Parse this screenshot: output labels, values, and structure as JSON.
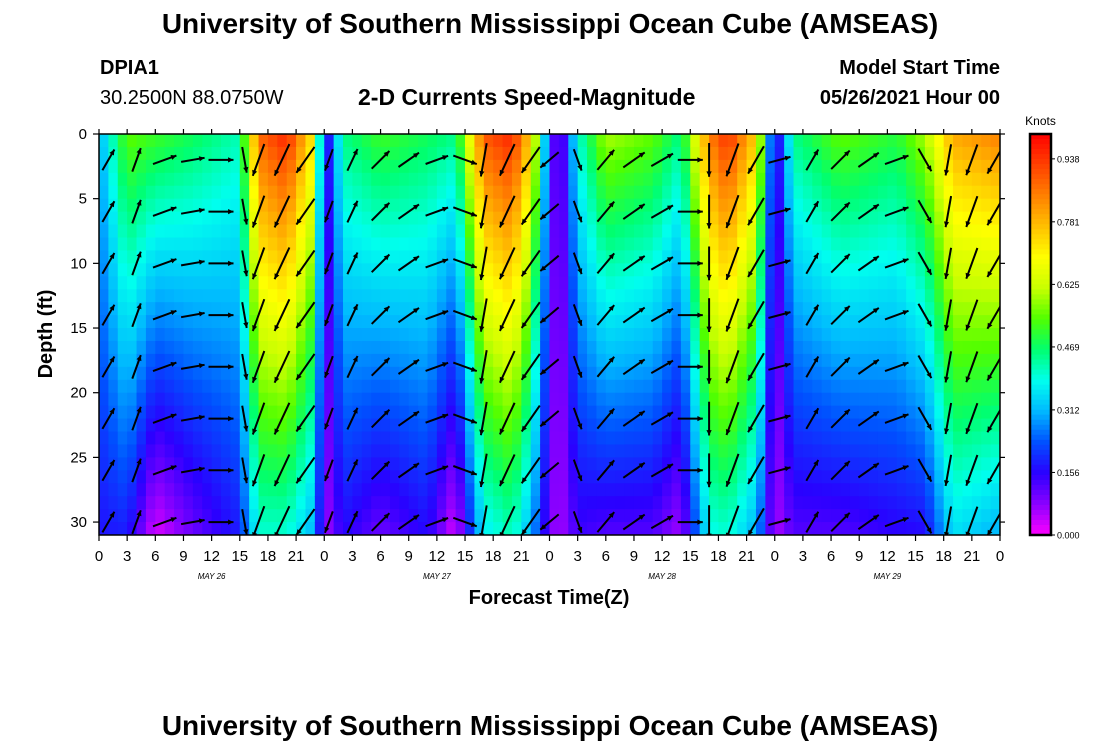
{
  "header": {
    "title": "University of Southern Mississippi Ocean Cube (AMSEAS)",
    "footer_title": "University of Southern Mississippi Ocean Cube (AMSEAS)",
    "station_id": "DPIA1",
    "station_coords": "30.2500N  88.0750W",
    "subtitle": "2-D Currents Speed-Magnitude",
    "model_start_label": "Model Start Time",
    "model_start_value": "05/26/2021 Hour 00"
  },
  "chart_data": {
    "type": "heatmap",
    "title": "2-D Currents Speed-Magnitude",
    "xlabel": "Forecast Time(Z)",
    "ylabel": "Depth (ft)",
    "x_range_hours": [
      0,
      96
    ],
    "ylim": [
      0,
      31
    ],
    "x_ticks": [
      {
        "hour": 0,
        "label": "0"
      },
      {
        "hour": 3,
        "label": "3"
      },
      {
        "hour": 6,
        "label": "6"
      },
      {
        "hour": 9,
        "label": "9"
      },
      {
        "hour": 12,
        "label": "12"
      },
      {
        "hour": 15,
        "label": "15"
      },
      {
        "hour": 18,
        "label": "18"
      },
      {
        "hour": 21,
        "label": "21"
      },
      {
        "hour": 24,
        "label": "0"
      },
      {
        "hour": 27,
        "label": "3"
      },
      {
        "hour": 30,
        "label": "6"
      },
      {
        "hour": 33,
        "label": "9"
      },
      {
        "hour": 36,
        "label": "12"
      },
      {
        "hour": 39,
        "label": "15"
      },
      {
        "hour": 42,
        "label": "18"
      },
      {
        "hour": 45,
        "label": "21"
      },
      {
        "hour": 48,
        "label": "0"
      },
      {
        "hour": 51,
        "label": "3"
      },
      {
        "hour": 54,
        "label": "6"
      },
      {
        "hour": 57,
        "label": "9"
      },
      {
        "hour": 60,
        "label": "12"
      },
      {
        "hour": 63,
        "label": "15"
      },
      {
        "hour": 66,
        "label": "18"
      },
      {
        "hour": 69,
        "label": "21"
      },
      {
        "hour": 72,
        "label": "0"
      },
      {
        "hour": 75,
        "label": "3"
      },
      {
        "hour": 78,
        "label": "6"
      },
      {
        "hour": 81,
        "label": "9"
      },
      {
        "hour": 84,
        "label": "12"
      },
      {
        "hour": 87,
        "label": "15"
      },
      {
        "hour": 90,
        "label": "18"
      },
      {
        "hour": 93,
        "label": "21"
      },
      {
        "hour": 96,
        "label": "0"
      }
    ],
    "date_labels": [
      {
        "hour": 12,
        "label": "MAY 26"
      },
      {
        "hour": 36,
        "label": "MAY 27"
      },
      {
        "hour": 60,
        "label": "MAY 28"
      },
      {
        "hour": 84,
        "label": "MAY 29"
      }
    ],
    "y_ticks": [
      0,
      5,
      10,
      15,
      20,
      25,
      30
    ],
    "colorbar": {
      "unit_label": "Knots",
      "min": 0.0,
      "max": 1.0,
      "ticks": [
        "0.000",
        "0.156",
        "0.312",
        "0.469",
        "0.625",
        "0.781",
        "0.938"
      ],
      "colors": [
        "#ff00ff",
        "#8a00ff",
        "#2a00ff",
        "#0050ff",
        "#00b8ff",
        "#00ffee",
        "#00ff70",
        "#50ff00",
        "#c8ff00",
        "#ffff00",
        "#ffc000",
        "#ff8000",
        "#ff4000",
        "#ff0000"
      ]
    },
    "speed_profiles": [
      {
        "hour": 0,
        "surface": 0.3,
        "deep": 0.17
      },
      {
        "hour": 3,
        "surface": 0.55,
        "deep": 0.18
      },
      {
        "hour": 6,
        "surface": 0.52,
        "deep": 0.02
      },
      {
        "hour": 10,
        "surface": 0.48,
        "deep": 0.1
      },
      {
        "hour": 15,
        "surface": 0.42,
        "deep": 0.18
      },
      {
        "hour": 17,
        "surface": 0.88,
        "deep": 0.4
      },
      {
        "hour": 20,
        "surface": 0.96,
        "deep": 0.4
      },
      {
        "hour": 23,
        "surface": 0.7,
        "deep": 0.3
      },
      {
        "hour": 24,
        "surface": 0.1,
        "deep": 0.05
      },
      {
        "hour": 26,
        "surface": 0.45,
        "deep": 0.16
      },
      {
        "hour": 30,
        "surface": 0.52,
        "deep": 0.1
      },
      {
        "hour": 35,
        "surface": 0.48,
        "deep": 0.16
      },
      {
        "hour": 38,
        "surface": 0.45,
        "deep": 0.02
      },
      {
        "hour": 41,
        "surface": 0.9,
        "deep": 0.36
      },
      {
        "hour": 44,
        "surface": 0.96,
        "deep": 0.42
      },
      {
        "hour": 46,
        "surface": 0.75,
        "deep": 0.3
      },
      {
        "hour": 48,
        "surface": 0.2,
        "deep": 0.1
      },
      {
        "hour": 49,
        "surface": 0.05,
        "deep": 0.05
      },
      {
        "hour": 51,
        "surface": 0.4,
        "deep": 0.14
      },
      {
        "hour": 54,
        "surface": 0.6,
        "deep": 0.12
      },
      {
        "hour": 59,
        "surface": 0.55,
        "deep": 0.12
      },
      {
        "hour": 62,
        "surface": 0.45,
        "deep": 0.06
      },
      {
        "hour": 65,
        "surface": 0.85,
        "deep": 0.38
      },
      {
        "hour": 67,
        "surface": 0.95,
        "deep": 0.4
      },
      {
        "hour": 70,
        "surface": 0.75,
        "deep": 0.3
      },
      {
        "hour": 72,
        "surface": 0.1,
        "deep": 0.05
      },
      {
        "hour": 74,
        "surface": 0.45,
        "deep": 0.12
      },
      {
        "hour": 79,
        "surface": 0.55,
        "deep": 0.12
      },
      {
        "hour": 85,
        "surface": 0.5,
        "deep": 0.15
      },
      {
        "hour": 88,
        "surface": 0.6,
        "deep": 0.16
      },
      {
        "hour": 91,
        "surface": 0.8,
        "deep": 0.35
      },
      {
        "hour": 96,
        "surface": 0.85,
        "deep": 0.3
      }
    ],
    "vector_depths_ft": [
      2,
      6,
      10,
      14,
      18,
      22,
      26,
      30
    ],
    "vector_columns": [
      {
        "hour": 1,
        "dir": 30,
        "mag": 0.45
      },
      {
        "hour": 4,
        "dir": 20,
        "mag": 0.5
      },
      {
        "hour": 7,
        "dir": 70,
        "mag": 0.5
      },
      {
        "hour": 10,
        "dir": 80,
        "mag": 0.45
      },
      {
        "hour": 13,
        "dir": 90,
        "mag": 0.5
      },
      {
        "hour": 15.5,
        "dir": 170,
        "mag": 0.55
      },
      {
        "hour": 17,
        "dir": 200,
        "mag": 0.9
      },
      {
        "hour": 19.5,
        "dir": 205,
        "mag": 0.95
      },
      {
        "hour": 22,
        "dir": 215,
        "mag": 0.8
      },
      {
        "hour": 24.5,
        "dir": 200,
        "mag": 0.4
      },
      {
        "hour": 27,
        "dir": 25,
        "mag": 0.45
      },
      {
        "hour": 30,
        "dir": 45,
        "mag": 0.5
      },
      {
        "hour": 33,
        "dir": 55,
        "mag": 0.5
      },
      {
        "hour": 36,
        "dir": 70,
        "mag": 0.45
      },
      {
        "hour": 39,
        "dir": 110,
        "mag": 0.5
      },
      {
        "hour": 41,
        "dir": 190,
        "mag": 0.9
      },
      {
        "hour": 43.5,
        "dir": 205,
        "mag": 0.95
      },
      {
        "hour": 46,
        "dir": 215,
        "mag": 0.8
      },
      {
        "hour": 48,
        "dir": 230,
        "mag": 0.45
      },
      {
        "hour": 51,
        "dir": 160,
        "mag": 0.4
      },
      {
        "hour": 54,
        "dir": 40,
        "mag": 0.55
      },
      {
        "hour": 57,
        "dir": 55,
        "mag": 0.55
      },
      {
        "hour": 60,
        "dir": 60,
        "mag": 0.5
      },
      {
        "hour": 63,
        "dir": 90,
        "mag": 0.5
      },
      {
        "hour": 65,
        "dir": 180,
        "mag": 0.9
      },
      {
        "hour": 67.5,
        "dir": 200,
        "mag": 0.95
      },
      {
        "hour": 70,
        "dir": 210,
        "mag": 0.8
      },
      {
        "hour": 72.5,
        "dir": 75,
        "mag": 0.4
      },
      {
        "hour": 76,
        "dir": 30,
        "mag": 0.45
      },
      {
        "hour": 79,
        "dir": 45,
        "mag": 0.55
      },
      {
        "hour": 82,
        "dir": 55,
        "mag": 0.5
      },
      {
        "hour": 85,
        "dir": 70,
        "mag": 0.5
      },
      {
        "hour": 88,
        "dir": 150,
        "mag": 0.55
      },
      {
        "hour": 90.5,
        "dir": 190,
        "mag": 0.8
      },
      {
        "hour": 93,
        "dir": 200,
        "mag": 0.85
      },
      {
        "hour": 95.5,
        "dir": 210,
        "mag": 0.8
      }
    ]
  }
}
